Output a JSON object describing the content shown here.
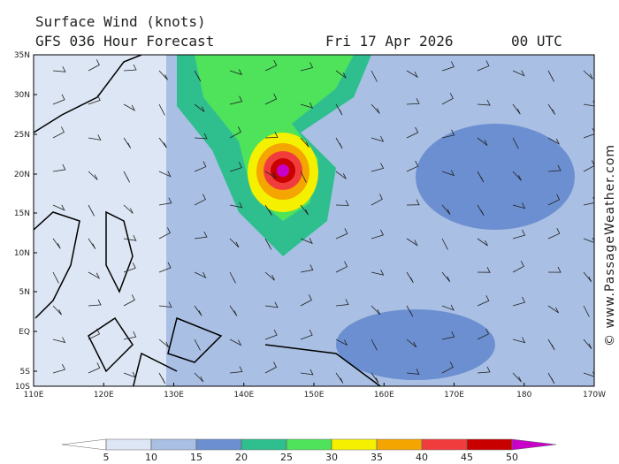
{
  "header": {
    "title": "Surface Wind (knots)",
    "subtitle": "GFS 036 Hour Forecast",
    "date": "Fri 17 Apr 2026",
    "time": "00 UTC"
  },
  "map": {
    "lat_labels": [
      "35N",
      "30N",
      "25N",
      "20N",
      "15N",
      "10N",
      "5N",
      "EQ",
      "5S",
      "10S"
    ],
    "lon_labels": [
      "110E",
      "120E",
      "130E",
      "140E",
      "150E",
      "160E",
      "170E",
      "180",
      "170W"
    ]
  },
  "colorbar": {
    "ticks": [
      5,
      10,
      15,
      20,
      25,
      30,
      35,
      40,
      45,
      50
    ],
    "colors": [
      "#ffffff",
      "#dde6f4",
      "#a9bfe3",
      "#6b8fd0",
      "#2fbf8f",
      "#4ee35a",
      "#f5f000",
      "#f5a500",
      "#f03c3c",
      "#c80000",
      "#c800c8"
    ]
  },
  "credit": "© www.PassageWeather.com"
}
